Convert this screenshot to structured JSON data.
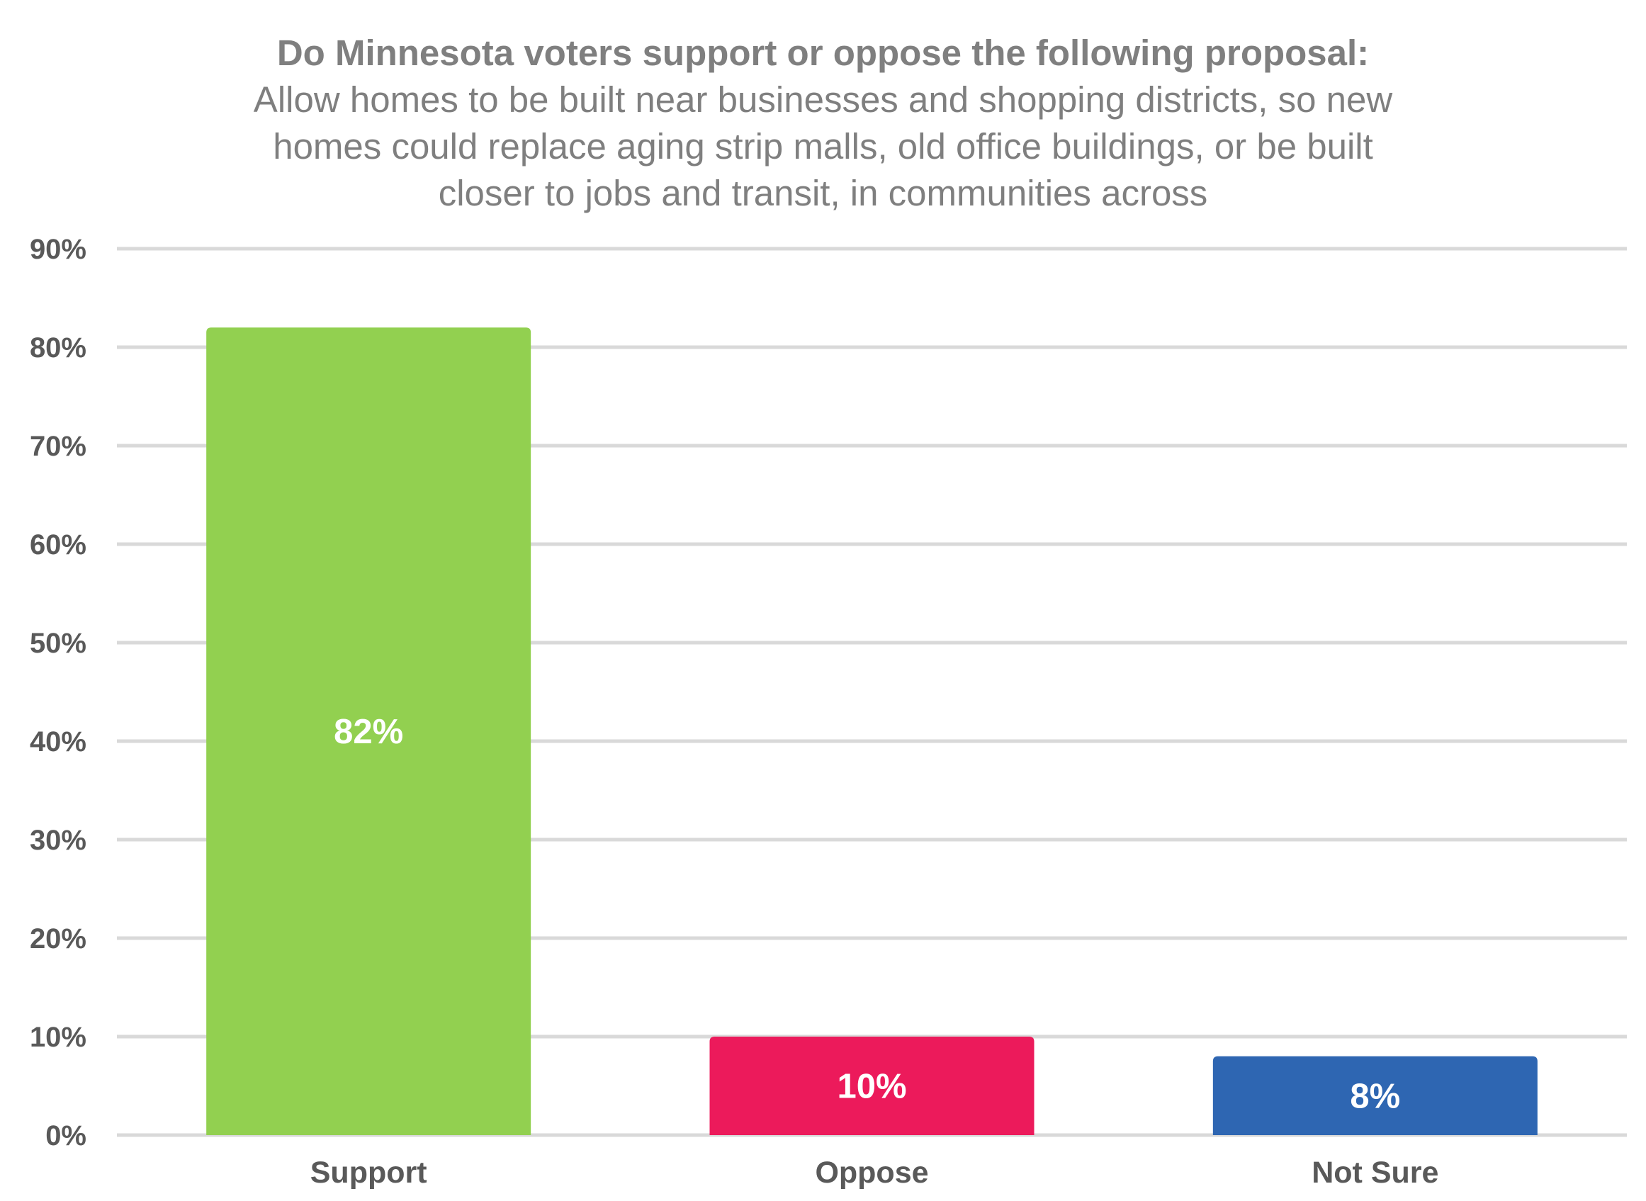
{
  "chart_data": {
    "type": "bar",
    "title": "Do Minnesota voters support or oppose the following proposal:",
    "subtitle_lines": [
      "Allow homes to be built near businesses and shopping districts, so new",
      "homes could replace aging strip malls, old office buildings, or be built",
      "closer to jobs and transit, in communities across"
    ],
    "categories": [
      "Support",
      "Oppose",
      "Not Sure"
    ],
    "values": [
      82,
      10,
      8
    ],
    "data_labels": [
      "82%",
      "10%",
      "8%"
    ],
    "colors": [
      "#92d050",
      "#ec1a5b",
      "#2e66b2"
    ],
    "ylim": [
      0,
      90
    ],
    "yticks": [
      0,
      10,
      20,
      30,
      40,
      50,
      60,
      70,
      80,
      90
    ],
    "ytick_labels": [
      "0%",
      "10%",
      "20%",
      "30%",
      "40%",
      "50%",
      "60%",
      "70%",
      "80%",
      "90%"
    ],
    "grid": true,
    "legend": "none",
    "xlabel": "",
    "ylabel": ""
  }
}
